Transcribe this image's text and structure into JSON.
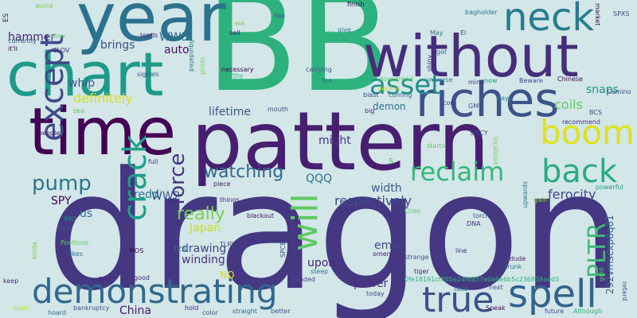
{
  "words": [
    {
      "text": "dragon",
      "color": "#453781"
    },
    {
      "text": "BB",
      "color": "#2db27d"
    },
    {
      "text": "pattern",
      "color": "#481f70"
    },
    {
      "text": "without",
      "color": "#472d7b"
    },
    {
      "text": "year",
      "color": "#2c728e"
    },
    {
      "text": "time",
      "color": "#440154"
    },
    {
      "text": "chart",
      "color": "#1f9a8a"
    },
    {
      "text": "riches",
      "color": "#3b528b"
    },
    {
      "text": "neck",
      "color": "#287c8e"
    },
    {
      "text": "asset",
      "color": "#21918c"
    },
    {
      "text": "boom",
      "color": "#dde318"
    },
    {
      "text": "except",
      "color": "#3e4a89"
    },
    {
      "text": "crack",
      "color": "#1fa088"
    },
    {
      "text": "back",
      "color": "#27ad81"
    },
    {
      "text": "reclaim",
      "color": "#35b779"
    },
    {
      "text": "demonstrating",
      "color": "#31688e"
    },
    {
      "text": "spell",
      "color": "#33638d"
    },
    {
      "text": "true",
      "color": "#3b528b"
    },
    {
      "text": "will",
      "color": "#5ec962"
    },
    {
      "text": "PLTR",
      "color": "#3dbc74"
    },
    {
      "text": "force",
      "color": "#46327e"
    },
    {
      "text": "pump",
      "color": "#2a788e"
    },
    {
      "text": "really",
      "color": "#7ad151"
    },
    {
      "text": "watching",
      "color": "#31688e"
    },
    {
      "text": "definitely",
      "color": "#d8e219"
    },
    {
      "text": "whip",
      "color": "#3b528b"
    },
    {
      "text": "coils",
      "color": "#5ec962"
    },
    {
      "text": "snaps",
      "color": "#1f968b"
    },
    {
      "text": "WW3",
      "color": "#2d708e"
    },
    {
      "text": "brings",
      "color": "#3b528b"
    },
    {
      "text": "auto",
      "color": "#471164"
    },
    {
      "text": "hammer",
      "color": "#482677"
    },
    {
      "text": "QQQ",
      "color": "#2d708e"
    },
    {
      "text": "width",
      "color": "#355f8d"
    },
    {
      "text": "lifetime",
      "color": "#39568c"
    },
    {
      "text": "demon",
      "color": "#2c728e"
    },
    {
      "text": "ferocity",
      "color": "#404688"
    },
    {
      "text": "respectively",
      "color": "#3f4889"
    },
    {
      "text": "might",
      "color": "#453581"
    },
    {
      "text": "redd",
      "color": "#2a788e"
    },
    {
      "text": "SPY",
      "color": "#440154"
    },
    {
      "text": "WW2",
      "color": "#3b528b"
    },
    {
      "text": "Japan",
      "color": "#c8e020"
    },
    {
      "text": "drawing",
      "color": "#414487"
    },
    {
      "text": "winding",
      "color": "#46337f"
    },
    {
      "text": "upon",
      "color": "#482576"
    },
    {
      "text": "emo",
      "color": "#3f4788"
    },
    {
      "text": "power",
      "color": "#472f7d"
    },
    {
      "text": "China",
      "color": "#48186a"
    },
    {
      "text": "292vmscxp8q81",
      "color": "#2f6c8e"
    },
    {
      "text": "0fe18191cf885e24f6857a0a6e6b5c236838aed3",
      "color": "#2db27d"
    },
    {
      "text": "us",
      "color": "#2c728e"
    },
    {
      "text": "NQ",
      "color": "#dce319"
    },
    {
      "text": "s",
      "color": "#5cc863"
    },
    {
      "text": "world",
      "color": "#7ad151"
    },
    {
      "text": "ES",
      "color": "#482173"
    },
    {
      "text": "finish",
      "color": "#440154"
    },
    {
      "text": "currently",
      "color": "#3b528b"
    },
    {
      "text": "it'll",
      "color": "#440154"
    },
    {
      "text": "slow",
      "color": "#5ec962"
    },
    {
      "text": "CLOV",
      "color": "#46337f"
    },
    {
      "text": "tends",
      "color": "#482677"
    },
    {
      "text": "sell",
      "color": "#481467"
    },
    {
      "text": "top",
      "color": "#3b528b"
    },
    {
      "text": "liquidated",
      "color": "#2a788e"
    },
    {
      "text": "are",
      "color": "#7ad151"
    },
    {
      "text": "dude",
      "color": "#48186a"
    },
    {
      "text": "bagholder",
      "color": "#2a788e"
    },
    {
      "text": "SPXS",
      "color": "#3e4a89"
    },
    {
      "text": "market",
      "color": "#440154"
    },
    {
      "text": "give",
      "color": "#2a788e"
    },
    {
      "text": "season",
      "color": "#2db27d"
    },
    {
      "text": "May",
      "color": "#2c728e"
    },
    {
      "text": "El",
      "color": "#3e4989"
    },
    {
      "text": "got",
      "color": "#2e6e8e"
    },
    {
      "text": "shiny",
      "color": "#414487"
    },
    {
      "text": "mind",
      "color": "#46337f"
    },
    {
      "text": "now",
      "color": "#1fa088"
    },
    {
      "text": "Beware",
      "color": "#3e4a89"
    },
    {
      "text": "Chinese",
      "color": "#440154"
    },
    {
      "text": "Camino",
      "color": "#3e4a89"
    },
    {
      "text": "signals",
      "color": "#3b528b"
    },
    {
      "text": "necessary",
      "color": "#440154"
    },
    {
      "text": "worthy",
      "color": "#35b779"
    },
    {
      "text": "carrying",
      "color": "#3b528b"
    },
    {
      "text": "fire",
      "color": "#2a788e"
    },
    {
      "text": "downtrend",
      "color": "#5ec962"
    },
    {
      "text": "universe",
      "color": "#2c728e"
    },
    {
      "text": "result",
      "color": "#7ad151"
    },
    {
      "text": "blast",
      "color": "#3e4989"
    },
    {
      "text": "decline",
      "color": "#bddf26"
    },
    {
      "text": "coming",
      "color": "#31688e"
    },
    {
      "text": "corn",
      "color": "#46337f"
    },
    {
      "text": "GME",
      "color": "#3b528b"
    },
    {
      "text": "days",
      "color": "#287d8e"
    },
    {
      "text": "recommend",
      "color": "#46337f"
    },
    {
      "text": "BCS",
      "color": "#3b528b"
    },
    {
      "text": "mouth",
      "color": "#3b528b"
    },
    {
      "text": "big",
      "color": "#482677"
    },
    {
      "text": "SPICY",
      "color": "#3e4a89"
    },
    {
      "text": "starts",
      "color": "#5ec962"
    },
    {
      "text": "localized",
      "color": "#7ad151"
    },
    {
      "text": "full",
      "color": "#46337f"
    },
    {
      "text": "piece",
      "color": "#471164"
    },
    {
      "text": "gain",
      "color": "#7ad151"
    },
    {
      "text": "powerful",
      "color": "#1f9e89"
    },
    {
      "text": "things",
      "color": "#482878"
    },
    {
      "text": "IMO",
      "color": "#20938c"
    },
    {
      "text": "blackout",
      "color": "#471164"
    },
    {
      "text": "Cries",
      "color": "#5ec962"
    },
    {
      "text": "torch",
      "color": "#3b528b"
    },
    {
      "text": "DNA",
      "color": "#443983"
    },
    {
      "text": "upwards",
      "color": "#2a788e"
    },
    {
      "text": "people",
      "color": "#471164"
    },
    {
      "text": "fight",
      "color": "#3b528b"
    },
    {
      "text": "Positions",
      "color": "#5ec962"
    },
    {
      "text": "likes",
      "color": "#2c728e"
    },
    {
      "text": "MOS",
      "color": "#440154"
    },
    {
      "text": "TZA",
      "color": "#2a788e"
    },
    {
      "text": "TLRY",
      "color": "#3b528b"
    },
    {
      "text": "SPCE",
      "color": "#3b528b"
    },
    {
      "text": "omen",
      "color": "#48186a"
    },
    {
      "text": "strange",
      "color": "#3b528b"
    },
    {
      "text": "line",
      "color": "#472d7b"
    },
    {
      "text": "kinda",
      "color": "#7ad151"
    },
    {
      "text": "keep",
      "color": "#482677"
    },
    {
      "text": "first",
      "color": "#482173"
    },
    {
      "text": "good",
      "color": "#472d7b"
    },
    {
      "text": "headed",
      "color": "#3e4989"
    },
    {
      "text": "steep",
      "color": "#2a788e"
    },
    {
      "text": "tiger",
      "color": "#481f70"
    },
    {
      "text": "trunk",
      "color": "#2a788e"
    },
    {
      "text": "next",
      "color": "#3b528b"
    },
    {
      "text": "take",
      "color": "#2c728e"
    },
    {
      "text": "gold",
      "color": "#5ec962"
    },
    {
      "text": "retard",
      "color": "#3b528b"
    },
    {
      "text": "loser",
      "color": "#b5de2b"
    },
    {
      "text": "hoard",
      "color": "#2c728e"
    },
    {
      "text": "bankruptcy",
      "color": "#3b528b"
    },
    {
      "text": "color",
      "color": "#3b528b"
    },
    {
      "text": "hold",
      "color": "#482878"
    },
    {
      "text": "straight",
      "color": "#31688e"
    },
    {
      "text": "better",
      "color": "#3b528b"
    },
    {
      "text": "today",
      "color": "#3b528b"
    },
    {
      "text": "Speak",
      "color": "#440154"
    },
    {
      "text": "future",
      "color": "#3e4a89"
    },
    {
      "text": "Although",
      "color": "#2db27d"
    },
    {
      "text": "sea",
      "color": "#5ec962"
    }
  ]
}
